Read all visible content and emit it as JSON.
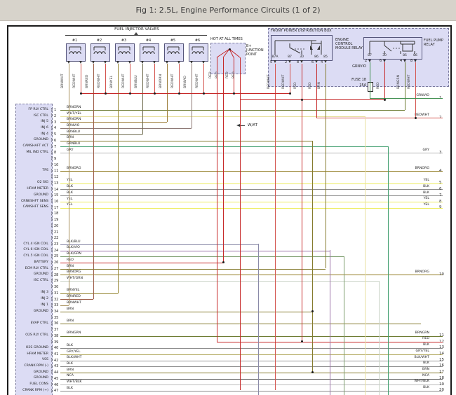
{
  "title": "Fig 1: 2.5L, Engine Performance Circuits (1 of 2)",
  "note": "W/AT",
  "colors": {
    "RED": "#c62828",
    "REDWHT": "#d4554f",
    "BRN": "#857b2e",
    "BRNWHT": "#a8905c",
    "BRNRED": "#9e5f4a",
    "BRNYEL": "#948430",
    "BRNBLU": "#6e6a4e",
    "BRNORN": "#9c7c38",
    "BRNVIO": "#8e7a76",
    "BRNGRN": "#6e7c33",
    "BRNORG": "#8f7a1e",
    "WHT/YEL": "#e8e0a0",
    "WHT/GRN": "#c9d2c6",
    "GRNBLU": "#3f9e6e",
    "GRNVIO": "#3f8f4f",
    "GRY": "#b5b5b5",
    "GRY/YEL": "#b3aa60",
    "YEL": "#ecec5e",
    "BLK": "#8c8c8c",
    "BLK/BLU": "#8a8aa8",
    "BLK/VIO": "#9b74a8",
    "BLK/GRN": "#7c9c6c",
    "BLK/WHT": "#979797",
    "WHT/BLK": "#bcbcbc",
    "NCA": "#5a5a5a"
  },
  "injector_section": {
    "label": "FUEL INJECTOR VALVES",
    "injectors": [
      {
        "id": "#1",
        "wires": [
          "BRNWHT",
          "REDWHT"
        ]
      },
      {
        "id": "#2",
        "wires": [
          "BRNRED",
          "REDWHT"
        ]
      },
      {
        "id": "#3",
        "wires": [
          "BRNYEL",
          "REDWHT"
        ]
      },
      {
        "id": "#4",
        "wires": [
          "BRNBLU",
          "REDWHT"
        ]
      },
      {
        "id": "#5",
        "wires": [
          "BRNORN",
          "REDWHT"
        ]
      },
      {
        "id": "#6",
        "wires": [
          "BRNVIO",
          "REDWHT"
        ]
      }
    ]
  },
  "b_plus": {
    "box_label": "HOT AT ALL TIMES",
    "junction_label": "B+ JUNCTION POINT",
    "wire": "RED"
  },
  "power_box": {
    "label": "FRONT POWER DISTRIBUTION BOX",
    "ecm_relay": {
      "label": "ENGINE CONTROL MODULE RELAY",
      "terminals": [
        "87A",
        "87",
        "30",
        "86",
        "85"
      ],
      "pins": [
        "5",
        "2",
        "8",
        "6",
        "4"
      ],
      "wires": [
        "REDWHT",
        "REDWHT",
        "RED",
        "RED",
        "BRN"
      ]
    },
    "fuel_pump_relay": {
      "label": "FUEL PUMP RELAY",
      "terminals": [
        "87",
        "30",
        "85",
        "86"
      ],
      "pins": [
        "2",
        "6",
        "4",
        "8"
      ],
      "wires": [
        "GRNVIO",
        "RED",
        "BRNGRN",
        "REDWHT"
      ],
      "fuse": {
        "name": "FUSE 18",
        "rating": "15A"
      }
    }
  },
  "connector": {
    "rows": [
      {
        "pin": 1,
        "label": "FP RLY CTRL",
        "wire": "BRNGRN"
      },
      {
        "pin": 2,
        "label": "ISC CTRL",
        "wire": "WHT/YEL"
      },
      {
        "pin": 3,
        "label": "INJ 5",
        "wire": "BRNORN"
      },
      {
        "pin": 4,
        "label": "INJ 6",
        "wire": "BRNVIO"
      },
      {
        "pin": 5,
        "label": "INJ 4",
        "wire": "BRNBLU"
      },
      {
        "pin": 6,
        "label": "GROUND",
        "wire": "BRN"
      },
      {
        "pin": 7,
        "label": "CAMSHAFT ACT",
        "wire": "GRNBLU"
      },
      {
        "pin": 8,
        "label": "MIL IND CTRL",
        "wire": "GRY"
      },
      {
        "pin": 9,
        "label": "",
        "wire": ""
      },
      {
        "pin": 10,
        "label": "",
        "wire": ""
      },
      {
        "pin": 11,
        "label": "TPS",
        "wire": "BRNORG"
      },
      {
        "pin": 12,
        "label": "",
        "wire": ""
      },
      {
        "pin": 13,
        "label": "O2 SIG",
        "wire": "YEL"
      },
      {
        "pin": 14,
        "label": "HFAM METER",
        "wire": "BLK"
      },
      {
        "pin": 15,
        "label": "GROUND",
        "wire": "BLK"
      },
      {
        "pin": 16,
        "label": "CRNKSHFT SENS",
        "wire": "YEL"
      },
      {
        "pin": 17,
        "label": "CAMSHFT SENS",
        "wire": "YEL"
      },
      {
        "pin": 18,
        "label": "",
        "wire": ""
      },
      {
        "pin": 19,
        "label": "",
        "wire": ""
      },
      {
        "pin": 20,
        "label": "",
        "wire": ""
      },
      {
        "pin": 21,
        "label": "",
        "wire": ""
      },
      {
        "pin": 22,
        "label": "",
        "wire": ""
      },
      {
        "pin": 23,
        "label": "CYL 4 IGN COIL",
        "wire": "BLK/BLU"
      },
      {
        "pin": 24,
        "label": "CYL 6 IGN COIL",
        "wire": "BLK/VIO"
      },
      {
        "pin": 25,
        "label": "CYL 5 IGN COIL",
        "wire": "BLK/GRN"
      },
      {
        "pin": 26,
        "label": "BATTERY",
        "wire": "RED"
      },
      {
        "pin": 27,
        "label": "ECM RLY CTRL",
        "wire": "BRN"
      },
      {
        "pin": 28,
        "label": "GROUND",
        "wire": "BRNORG"
      },
      {
        "pin": 29,
        "label": "ISC CTRL",
        "wire": "WHT/GRN"
      },
      {
        "pin": 30,
        "label": "",
        "wire": ""
      },
      {
        "pin": 31,
        "label": "INJ 3",
        "wire": "BRNYEL"
      },
      {
        "pin": 32,
        "label": "INJ 2",
        "wire": "BRNRED"
      },
      {
        "pin": 33,
        "label": "INJ 1",
        "wire": "BRNWHT"
      },
      {
        "pin": 34,
        "label": "GROUND",
        "wire": "BRN"
      },
      {
        "pin": 35,
        "label": "",
        "wire": ""
      },
      {
        "pin": 36,
        "label": "EVAP CTRL",
        "wire": "BRN"
      },
      {
        "pin": 37,
        "label": "",
        "wire": ""
      },
      {
        "pin": 38,
        "label": "O2S RLY CTRL",
        "wire": "BRNGRN"
      },
      {
        "pin": 39,
        "label": "",
        "wire": ""
      },
      {
        "pin": 40,
        "label": "O2S GROUND",
        "wire": "BLK"
      },
      {
        "pin": 41,
        "label": "HFAM METER",
        "wire": "GRY/YEL"
      },
      {
        "pin": 42,
        "label": "VSS",
        "wire": "BLK/WHT"
      },
      {
        "pin": 43,
        "label": "CRANK RPM (-)",
        "wire": "BLK"
      },
      {
        "pin": 44,
        "label": "GROUND",
        "wire": "BRN"
      },
      {
        "pin": 45,
        "label": "GROUND",
        "wire": "NCA"
      },
      {
        "pin": 46,
        "label": "FUEL CONS",
        "wire": "WHT/BLK"
      },
      {
        "pin": 47,
        "label": "CRANK RPM (+)",
        "wire": "BLK"
      }
    ]
  },
  "right_terminals": [
    {
      "num": "1",
      "wire": "GRNVIO"
    },
    {
      "num": "2",
      "wire": "REDWHT"
    },
    {
      "num": "3",
      "wire": "GRY"
    },
    {
      "num": "4",
      "wire": "BRNORG"
    },
    {
      "num": "5",
      "wire": "YEL"
    },
    {
      "num": "6",
      "wire": "BLK"
    },
    {
      "num": "7",
      "wire": "BLK"
    },
    {
      "num": "8",
      "wire": "YEL"
    },
    {
      "num": "9",
      "wire": "YEL"
    },
    {
      "num": "10",
      "wire": "BRNORG"
    },
    {
      "num": "11",
      "wire": "BRNGRN"
    },
    {
      "num": "12",
      "wire": "RED"
    },
    {
      "num": "13",
      "wire": "BLK"
    },
    {
      "num": "14",
      "wire": "GRY/YEL"
    },
    {
      "num": "15",
      "wire": "BLK/WHT"
    },
    {
      "num": "16",
      "wire": "BLK"
    },
    {
      "num": "17",
      "wire": "BRN"
    },
    {
      "num": "18",
      "wire": "NCA"
    },
    {
      "num": "19",
      "wire": "WHT/BLK"
    },
    {
      "num": "20",
      "wire": "BLK"
    }
  ]
}
